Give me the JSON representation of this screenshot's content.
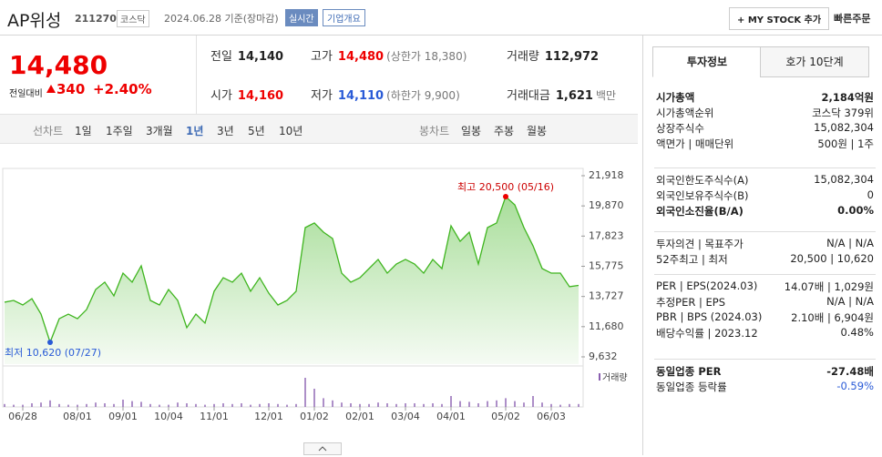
{
  "header": {
    "name": "AP위성",
    "code": "211270",
    "market": "코스닥",
    "date": "2024.06.28",
    "basis": "기준(장마감)",
    "realtime": "실시간",
    "overview": "기업개요",
    "mystock": "+ MY STOCK 추가",
    "quick_order": "빠른주문"
  },
  "quote": {
    "price": "14,480",
    "change_label": "전일대비",
    "change": "340",
    "change_rate": "+2.40%",
    "cells": [
      {
        "label": "전일",
        "value": "14,140",
        "extra": ""
      },
      {
        "label": "고가",
        "value": "14,480",
        "extra": "(상한가 18,380)"
      },
      {
        "label": "거래량",
        "value": "112,972",
        "extra": ""
      },
      {
        "label": "시가",
        "value": "14,160",
        "extra": ""
      },
      {
        "label": "저가",
        "value": "14,110",
        "extra": "(하한가 9,900)"
      },
      {
        "label": "거래대금",
        "value": "1,621",
        "extra": "백만"
      }
    ]
  },
  "period_tabs": {
    "line_label": "선차트",
    "line": [
      "1일",
      "1주일",
      "3개월",
      "1년",
      "3년",
      "5년",
      "10년"
    ],
    "candle_label": "봉차트",
    "candle": [
      "일봉",
      "주봉",
      "월봉"
    ]
  },
  "chart_data": [
    {
      "type": "line",
      "color": "#3fb51f",
      "categories": [
        null,
        null,
        "06/28",
        null,
        null,
        null,
        null,
        null,
        "08/01",
        null,
        null,
        null,
        null,
        "09/01",
        null,
        null,
        null,
        null,
        "10/04",
        null,
        null,
        null,
        null,
        "11/01",
        null,
        null,
        null,
        null,
        null,
        "12/01",
        null,
        null,
        null,
        null,
        "01/02",
        null,
        null,
        null,
        null,
        "02/01",
        null,
        null,
        null,
        null,
        "03/04",
        null,
        null,
        null,
        null,
        "04/01",
        null,
        null,
        null,
        null,
        null,
        "05/02",
        null,
        null,
        null,
        null,
        "06/03",
        null,
        null,
        null
      ],
      "values": [
        13340,
        13460,
        13150,
        13580,
        12530,
        10620,
        12220,
        12530,
        12220,
        12840,
        14200,
        14700,
        13770,
        15310,
        14700,
        15810,
        13460,
        13150,
        14200,
        13460,
        11610,
        12530,
        11920,
        14080,
        15000,
        14700,
        15310,
        14080,
        15000,
        13950,
        13150,
        13460,
        14080,
        18400,
        18710,
        18090,
        17660,
        15310,
        14700,
        15000,
        15620,
        16240,
        15310,
        15930,
        16240,
        15930,
        15310,
        16240,
        15620,
        18520,
        17470,
        18090,
        15930,
        18400,
        18710,
        20500,
        19940,
        18400,
        17160,
        15620,
        15310,
        15310,
        14390,
        14480
      ],
      "ylim": [
        9632,
        21918
      ],
      "yticks": [
        {
          "value": 9632,
          "label": "9,632"
        },
        {
          "value": 11680,
          "label": "11,680"
        },
        {
          "value": 13727,
          "label": "13,727"
        },
        {
          "value": 15775,
          "label": "15,775"
        },
        {
          "value": 17823,
          "label": "17,823"
        },
        {
          "value": 19870,
          "label": "19,870"
        },
        {
          "value": 21918,
          "label": "21,918"
        }
      ],
      "annotations": {
        "high": "최고 20,500 (05/16)",
        "low": "최저 10,620 (07/27)"
      }
    },
    {
      "type": "bar",
      "title": "거래량",
      "color": "#8a5fb0",
      "values": [
        4,
        3,
        3,
        5,
        6,
        9,
        4,
        3,
        3,
        4,
        6,
        5,
        4,
        10,
        8,
        7,
        4,
        3,
        3,
        6,
        5,
        4,
        3,
        4,
        5,
        4,
        5,
        3,
        4,
        5,
        4,
        3,
        4,
        40,
        25,
        12,
        9,
        6,
        5,
        4,
        4,
        6,
        5,
        4,
        5,
        5,
        4,
        5,
        4,
        15,
        8,
        7,
        5,
        8,
        9,
        12,
        8,
        6,
        15,
        6,
        4,
        3,
        4,
        4
      ],
      "ylim": [
        0,
        50
      ]
    }
  ],
  "side": {
    "tabs": [
      "투자정보",
      "호가 10단계"
    ],
    "sections": [
      [
        {
          "label": "시가총액",
          "value": "2,184억원"
        },
        {
          "label": "시가총액순위",
          "value": "코스닥 379위"
        },
        {
          "label": "상장주식수",
          "value": "15,082,304"
        },
        {
          "label": "액면가 | 매매단위",
          "value": "500원 | 1주"
        }
      ],
      [
        {
          "label": "외국인한도주식수(A)",
          "value": "15,082,304"
        },
        {
          "label": "외국인보유주식수(B)",
          "value": "0"
        },
        {
          "label": "외국인소진율(B/A)",
          "value": "0.00%"
        }
      ],
      [
        {
          "label": "투자의견 | 목표주가",
          "value": "N/A | N/A"
        },
        {
          "label": "52주최고 | 최저",
          "value": "20,500 | 10,620"
        }
      ],
      [
        {
          "label": "PER | EPS(2024.03)",
          "value": "14.07배 | 1,029원"
        },
        {
          "label": "추정PER | EPS",
          "value": "N/A | N/A"
        },
        {
          "label": "PBR | BPS (2024.03)",
          "value": "2.10배 | 6,904원"
        },
        {
          "label": "배당수익률 | 2023.12",
          "value": "0.48%"
        }
      ],
      [
        {
          "label": "동일업종 PER",
          "value": "-27.48배"
        },
        {
          "label": "동일업종 등락률",
          "value": "-0.59%"
        }
      ]
    ]
  }
}
